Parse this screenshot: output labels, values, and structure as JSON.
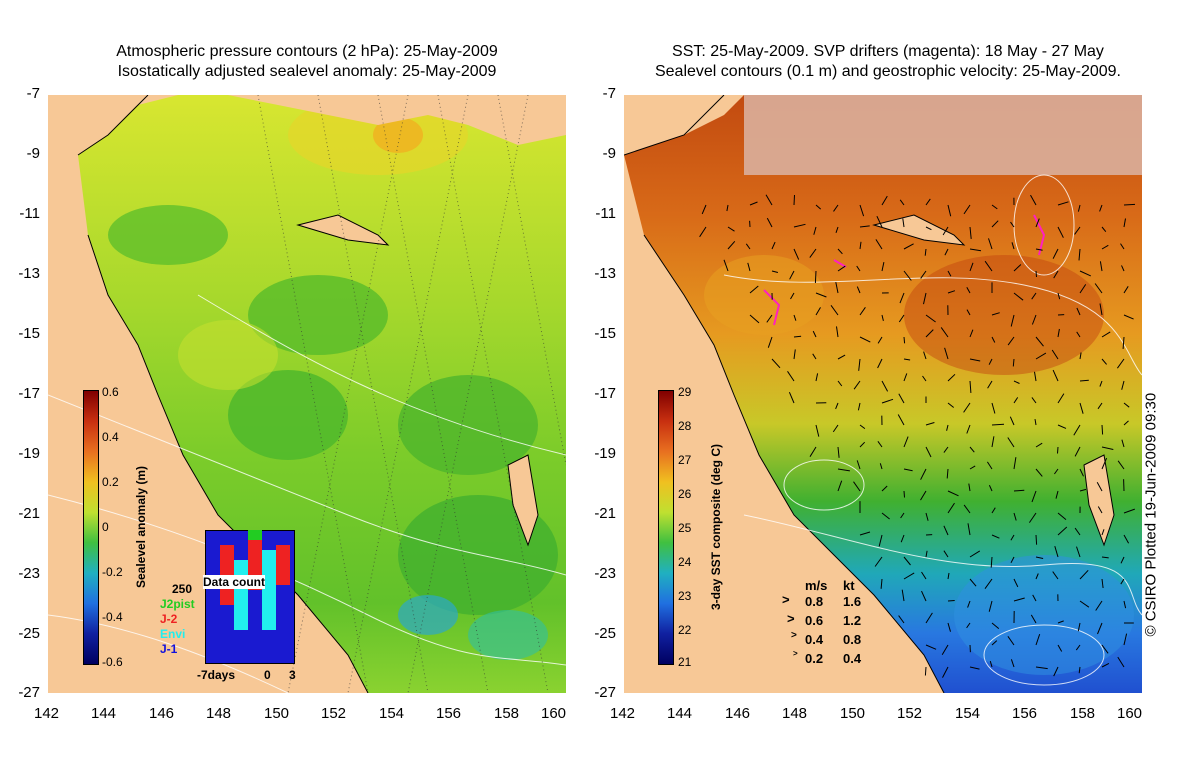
{
  "left_panel": {
    "title_line1": "Atmospheric pressure contours (2 hPa): 25-May-2009",
    "title_line2": "Isostatically adjusted sealevel anomaly: 25-May-2009",
    "colorbar": {
      "label": "Sealevel anomaly (m)",
      "ticks": [
        "0.6",
        "0.4",
        "0.2",
        "0",
        "-0.2",
        "-0.4",
        "-0.6"
      ]
    },
    "inset": {
      "title": "Data count",
      "max_label": "250",
      "sources": [
        {
          "name": "J2pist",
          "color": "#22cc22"
        },
        {
          "name": "J-2",
          "color": "#ee2222"
        },
        {
          "name": "Envi",
          "color": "#22eeee"
        },
        {
          "name": "J-1",
          "color": "#1111dd"
        }
      ],
      "x_labels": [
        "-7days",
        "0",
        "3"
      ]
    }
  },
  "right_panel": {
    "title_line1": "SST: 25-May-2009. SVP drifters (magenta): 18 May - 27 May",
    "title_line2": "Sealevel contours (0.1 m) and geostrophic velocity: 25-May-2009.",
    "colorbar": {
      "label": "3-day SST composite (deg C)",
      "ticks": [
        "29",
        "28",
        "27",
        "26",
        "25",
        "24",
        "23",
        "22",
        "21"
      ]
    },
    "velocity_legend": {
      "header_ms": "m/s",
      "header_kt": "kt",
      "rows": [
        {
          "ms": "0.8",
          "kt": "1.6"
        },
        {
          "ms": "0.6",
          "kt": "1.2"
        },
        {
          "ms": "0.4",
          "kt": "0.8"
        },
        {
          "ms": "0.2",
          "kt": "0.4"
        }
      ]
    },
    "credit": "© CSIRO Plotted 19-Jun-2009 09:30"
  },
  "axes": {
    "x_ticks": [
      "142",
      "144",
      "146",
      "148",
      "150",
      "152",
      "154",
      "156",
      "158",
      "160"
    ],
    "y_ticks": [
      "-7",
      "-9",
      "-11",
      "-13",
      "-15",
      "-17",
      "-19",
      "-21",
      "-23",
      "-25",
      "-27"
    ]
  },
  "colors": {
    "land": "#f7c896",
    "background": "#ffffff"
  }
}
